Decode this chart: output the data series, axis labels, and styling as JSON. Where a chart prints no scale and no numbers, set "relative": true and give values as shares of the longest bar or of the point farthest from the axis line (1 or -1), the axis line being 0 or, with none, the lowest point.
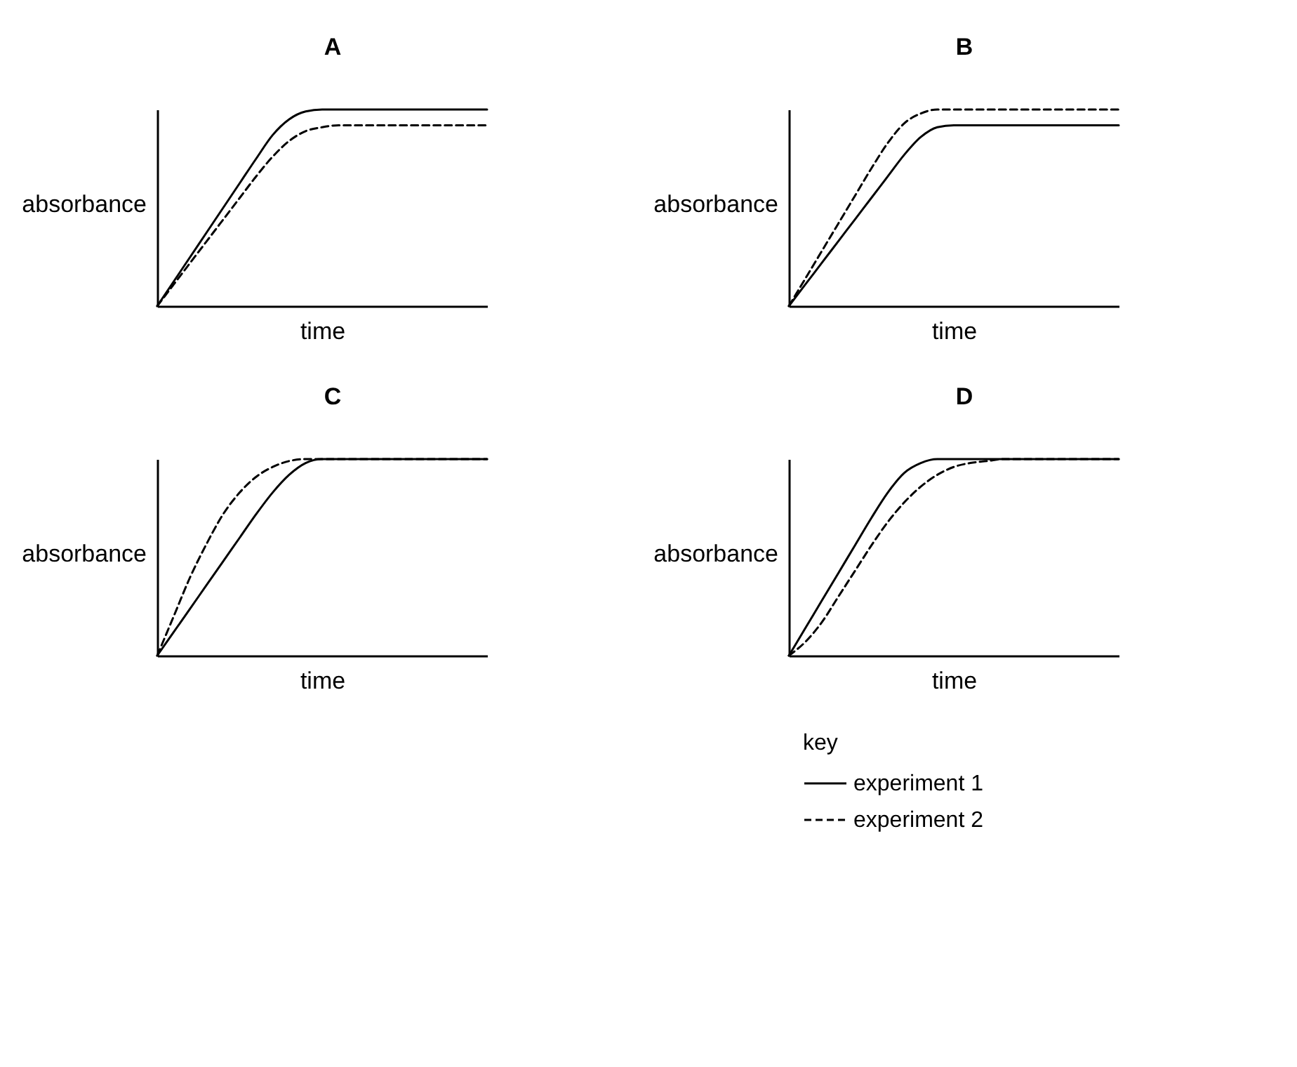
{
  "chart_data": [
    {
      "type": "line",
      "title": "A",
      "xlabel": "time",
      "ylabel": "absorbance",
      "relative": true,
      "tick_labels": false,
      "categories": [
        null,
        null,
        null,
        null,
        null,
        null,
        null,
        null,
        null,
        null,
        null,
        null,
        null,
        null,
        null,
        null,
        null,
        null,
        null,
        null,
        null
      ],
      "series": [
        {
          "color": "#000000",
          "line_style": "solid",
          "values": [
            0,
            0.125,
            0.25,
            0.375,
            0.5,
            0.625,
            0.75,
            0.87,
            0.95,
            0.99,
            1,
            1,
            1,
            1,
            1,
            1,
            1,
            1,
            1,
            1,
            1
          ]
        },
        {
          "color": "#000000",
          "line_style": "dashed",
          "values": [
            0,
            0.11,
            0.22,
            0.33,
            0.44,
            0.55,
            0.66,
            0.76,
            0.84,
            0.89,
            0.91,
            0.92,
            0.92,
            0.92,
            0.92,
            0.92,
            0.92,
            0.92,
            0.92,
            0.92,
            0.92
          ]
        }
      ]
    },
    {
      "type": "line",
      "title": "B",
      "xlabel": "time",
      "ylabel": "absorbance",
      "relative": true,
      "tick_labels": false,
      "categories": [
        null,
        null,
        null,
        null,
        null,
        null,
        null,
        null,
        null,
        null,
        null,
        null,
        null,
        null,
        null,
        null,
        null,
        null,
        null,
        null,
        null
      ],
      "series": [
        {
          "color": "#000000",
          "line_style": "solid",
          "values": [
            0,
            0.11,
            0.22,
            0.33,
            0.44,
            0.55,
            0.66,
            0.77,
            0.86,
            0.91,
            0.92,
            0.92,
            0.92,
            0.92,
            0.92,
            0.92,
            0.92,
            0.92,
            0.92,
            0.92,
            0.92
          ]
        },
        {
          "color": "#000000",
          "line_style": "dashed",
          "values": [
            0,
            0.14,
            0.28,
            0.42,
            0.56,
            0.7,
            0.83,
            0.93,
            0.98,
            1,
            1,
            1,
            1,
            1,
            1,
            1,
            1,
            1,
            1,
            1,
            1
          ]
        }
      ]
    },
    {
      "type": "line",
      "title": "C",
      "xlabel": "time",
      "ylabel": "absorbance",
      "relative": true,
      "tick_labels": false,
      "categories": [
        null,
        null,
        null,
        null,
        null,
        null,
        null,
        null,
        null,
        null,
        null,
        null,
        null,
        null,
        null,
        null,
        null,
        null,
        null,
        null,
        null
      ],
      "series": [
        {
          "color": "#000000",
          "line_style": "solid",
          "values": [
            0,
            0.12,
            0.24,
            0.36,
            0.48,
            0.6,
            0.72,
            0.83,
            0.92,
            0.98,
            1,
            1,
            1,
            1,
            1,
            1,
            1,
            1,
            1,
            1,
            1
          ]
        },
        {
          "color": "#000000",
          "line_style": "dashed",
          "values": [
            0,
            0.2,
            0.4,
            0.57,
            0.72,
            0.83,
            0.91,
            0.96,
            0.99,
            1,
            1,
            1,
            1,
            1,
            1,
            1,
            1,
            1,
            1,
            1,
            1
          ]
        }
      ]
    },
    {
      "type": "line",
      "title": "D",
      "xlabel": "time",
      "ylabel": "absorbance",
      "relative": true,
      "tick_labels": false,
      "legend": "bottom",
      "legend_title": "key",
      "categories": [
        null,
        null,
        null,
        null,
        null,
        null,
        null,
        null,
        null,
        null,
        null,
        null,
        null,
        null,
        null,
        null,
        null,
        null,
        null,
        null,
        null
      ],
      "series": [
        {
          "name": "experiment 1",
          "color": "#000000",
          "line_style": "solid",
          "values": [
            0,
            0.14,
            0.28,
            0.42,
            0.56,
            0.7,
            0.83,
            0.93,
            0.98,
            1,
            1,
            1,
            1,
            1,
            1,
            1,
            1,
            1,
            1,
            1,
            1
          ]
        },
        {
          "name": "experiment 2",
          "color": "#000000",
          "line_style": "dashed",
          "values": [
            0,
            0.07,
            0.17,
            0.3,
            0.43,
            0.56,
            0.68,
            0.78,
            0.86,
            0.92,
            0.96,
            0.98,
            0.99,
            1,
            1,
            1,
            1,
            1,
            1,
            1,
            1
          ]
        }
      ]
    }
  ]
}
